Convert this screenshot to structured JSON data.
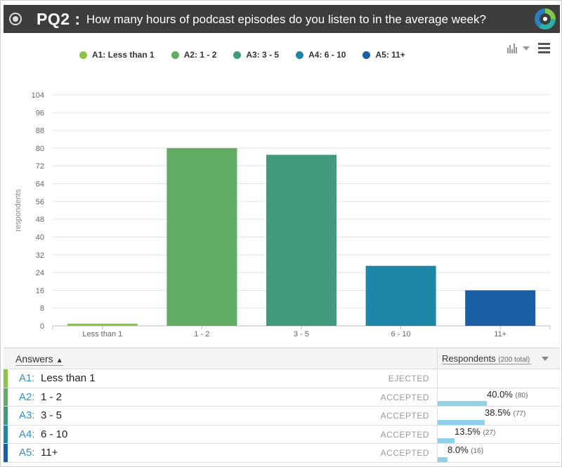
{
  "question": {
    "id": "PQ2 :",
    "text": "How many hours of podcast episodes do you listen to in the average week?"
  },
  "icons": {
    "toggle": "radio-icon",
    "logo": "logo-icon",
    "chart_type": "bar-chart-icon",
    "dropdown": "chevron-down-icon",
    "menu": "menu-icon"
  },
  "legend": [
    {
      "label": "A1: Less than 1",
      "color": "#8cc63f"
    },
    {
      "label": "A2: 1 - 2",
      "color": "#62ab62"
    },
    {
      "label": "A3: 3 - 5",
      "color": "#3f9a7e"
    },
    {
      "label": "A4: 6 - 10",
      "color": "#1e86a6"
    },
    {
      "label": "A5: 11+",
      "color": "#1a5fa3"
    }
  ],
  "chart_data": {
    "type": "bar",
    "categories": [
      "Less than 1",
      "1 - 2",
      "3 - 5",
      "6 - 10",
      "11+"
    ],
    "values": [
      1,
      80,
      77,
      27,
      16
    ],
    "colors": [
      "#8cc63f",
      "#62ab62",
      "#3f9a7e",
      "#1e86a6",
      "#1a5fa3"
    ],
    "ylabel": "respondents",
    "yticks": [
      0,
      8,
      16,
      24,
      32,
      40,
      48,
      56,
      64,
      72,
      80,
      88,
      96,
      104
    ],
    "ylim": [
      0,
      104
    ],
    "grid": true
  },
  "table": {
    "answers_header": "Answers",
    "sort_arrow": "▲",
    "respondents_header": "Respondents",
    "respondents_total": "(200 total)",
    "rows": [
      {
        "code": "A1:",
        "label": "Less than 1",
        "status": "EJECTED",
        "percent": "",
        "count": "",
        "fraction": 0,
        "color": "#8cc63f"
      },
      {
        "code": "A2:",
        "label": "1 - 2",
        "status": "ACCEPTED",
        "percent": "40.0%",
        "count": "(80)",
        "fraction": 0.4,
        "color": "#62ab62"
      },
      {
        "code": "A3:",
        "label": "3 - 5",
        "status": "ACCEPTED",
        "percent": "38.5%",
        "count": "(77)",
        "fraction": 0.385,
        "color": "#3f9a7e"
      },
      {
        "code": "A4:",
        "label": "6 - 10",
        "status": "ACCEPTED",
        "percent": "13.5%",
        "count": "(27)",
        "fraction": 0.135,
        "color": "#1e86a6"
      },
      {
        "code": "A5:",
        "label": "11+",
        "status": "ACCEPTED",
        "percent": "8.0%",
        "count": "(16)",
        "fraction": 0.08,
        "color": "#1a5fa3"
      }
    ]
  }
}
